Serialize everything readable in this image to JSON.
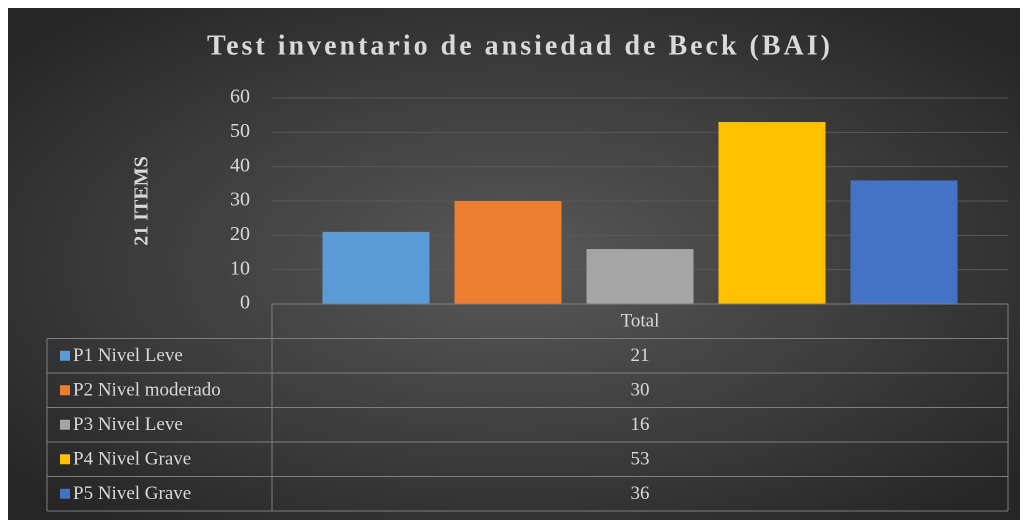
{
  "chart_data": {
    "type": "bar",
    "title": "Test inventario de ansiedad de Beck (BAI)",
    "y_label": "21 ITEMS",
    "categories": [
      "Total"
    ],
    "series": [
      {
        "name": "P1 Nivel Leve",
        "color": "#5b9bd5",
        "values": [
          21
        ]
      },
      {
        "name": "P2 Nivel moderado",
        "color": "#ed7d31",
        "values": [
          30
        ]
      },
      {
        "name": "P3 Nivel Leve",
        "color": "#a5a5a5",
        "values": [
          16
        ]
      },
      {
        "name": "P4 Nivel Grave",
        "color": "#ffc000",
        "values": [
          53
        ]
      },
      {
        "name": "P5 Nivel Grave",
        "color": "#4472c4",
        "values": [
          36
        ]
      }
    ],
    "ylim": [
      0,
      60
    ],
    "yticks": [
      0,
      10,
      20,
      30,
      40,
      50,
      60
    ],
    "grid": true,
    "data_table": true
  }
}
